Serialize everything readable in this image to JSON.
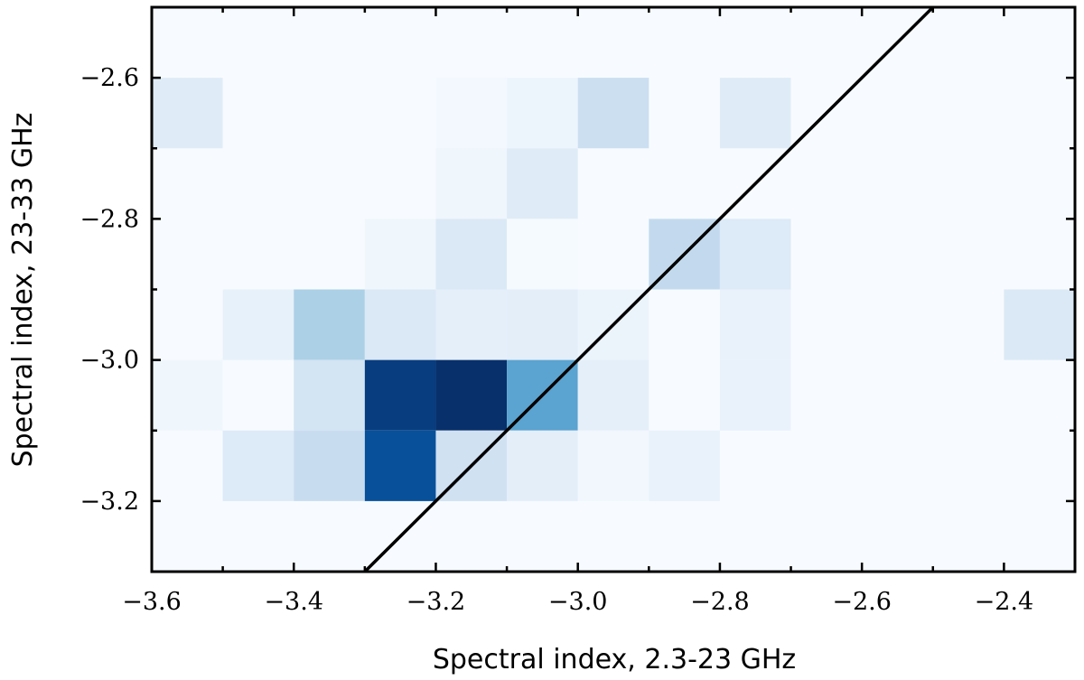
{
  "chart_data": {
    "type": "heatmap",
    "xlabel": "Spectral index, 2.3-23 GHz",
    "ylabel": "Spectral index, 23-33 GHz",
    "xlim": [
      -3.6,
      -2.3
    ],
    "ylim": [
      -3.3,
      -2.5
    ],
    "x_bin_edges": [
      -3.6,
      -3.5,
      -3.4,
      -3.3,
      -3.2,
      -3.1,
      -3.0,
      -2.9,
      -2.8,
      -2.7,
      -2.6,
      -2.5,
      -2.4,
      -2.3
    ],
    "y_bin_edges": [
      -3.3,
      -3.2,
      -3.1,
      -3.0,
      -2.9,
      -2.8,
      -2.7,
      -2.6,
      -2.5
    ],
    "x_ticks": [
      -3.6,
      -3.4,
      -3.2,
      -3.0,
      -2.8,
      -2.6,
      -2.4
    ],
    "x_tick_labels": [
      "−3.6",
      "−3.4",
      "−3.2",
      "−3.0",
      "−2.8",
      "−2.6",
      "−2.4"
    ],
    "y_ticks": [
      -3.2,
      -3.0,
      -2.8,
      -2.6
    ],
    "y_tick_labels": [
      "−3.2",
      "−3.0",
      "−2.8",
      "−2.6"
    ],
    "colormap": "Blues",
    "background_color": "#f7fbff",
    "cells": [
      {
        "x": [
          -3.6,
          -3.5
        ],
        "y": [
          -2.7,
          -2.6
        ],
        "value": 0.12
      },
      {
        "x": [
          -3.2,
          -3.1
        ],
        "y": [
          -2.7,
          -2.6
        ],
        "value": 0.02
      },
      {
        "x": [
          -3.1,
          -3.0
        ],
        "y": [
          -2.7,
          -2.6
        ],
        "value": 0.05
      },
      {
        "x": [
          -3.0,
          -2.9
        ],
        "y": [
          -2.7,
          -2.6
        ],
        "value": 0.22
      },
      {
        "x": [
          -2.8,
          -2.7
        ],
        "y": [
          -2.7,
          -2.6
        ],
        "value": 0.12
      },
      {
        "x": [
          -3.2,
          -3.1
        ],
        "y": [
          -2.8,
          -2.7
        ],
        "value": 0.04
      },
      {
        "x": [
          -3.1,
          -3.0
        ],
        "y": [
          -2.8,
          -2.7
        ],
        "value": 0.12
      },
      {
        "x": [
          -3.3,
          -3.2
        ],
        "y": [
          -2.9,
          -2.8
        ],
        "value": 0.04
      },
      {
        "x": [
          -3.2,
          -3.1
        ],
        "y": [
          -2.9,
          -2.8
        ],
        "value": 0.14
      },
      {
        "x": [
          -3.1,
          -3.0
        ],
        "y": [
          -2.9,
          -2.8
        ],
        "value": 0.01
      },
      {
        "x": [
          -2.9,
          -2.8
        ],
        "y": [
          -2.9,
          -2.8
        ],
        "value": 0.26
      },
      {
        "x": [
          -2.8,
          -2.7
        ],
        "y": [
          -2.9,
          -2.8
        ],
        "value": 0.13
      },
      {
        "x": [
          -3.5,
          -3.4
        ],
        "y": [
          -3.0,
          -2.9
        ],
        "value": 0.08
      },
      {
        "x": [
          -3.4,
          -3.3
        ],
        "y": [
          -3.0,
          -2.9
        ],
        "value": 0.33
      },
      {
        "x": [
          -3.3,
          -3.2
        ],
        "y": [
          -3.0,
          -2.9
        ],
        "value": 0.14
      },
      {
        "x": [
          -3.2,
          -3.1
        ],
        "y": [
          -3.0,
          -2.9
        ],
        "value": 0.09
      },
      {
        "x": [
          -3.1,
          -3.0
        ],
        "y": [
          -3.0,
          -2.9
        ],
        "value": 0.1
      },
      {
        "x": [
          -3.0,
          -2.9
        ],
        "y": [
          -3.0,
          -2.9
        ],
        "value": 0.06
      },
      {
        "x": [
          -2.8,
          -2.7
        ],
        "y": [
          -3.0,
          -2.9
        ],
        "value": 0.07
      },
      {
        "x": [
          -2.4,
          -2.3
        ],
        "y": [
          -3.0,
          -2.9
        ],
        "value": 0.14
      },
      {
        "x": [
          -3.6,
          -3.5
        ],
        "y": [
          -3.1,
          -3.0
        ],
        "value": 0.04
      },
      {
        "x": [
          -3.4,
          -3.3
        ],
        "y": [
          -3.1,
          -3.0
        ],
        "value": 0.18
      },
      {
        "x": [
          -3.3,
          -3.2
        ],
        "y": [
          -3.1,
          -3.0
        ],
        "value": 0.95
      },
      {
        "x": [
          -3.2,
          -3.1
        ],
        "y": [
          -3.1,
          -3.0
        ],
        "value": 1.0
      },
      {
        "x": [
          -3.1,
          -3.0
        ],
        "y": [
          -3.1,
          -3.0
        ],
        "value": 0.55
      },
      {
        "x": [
          -3.0,
          -2.9
        ],
        "y": [
          -3.1,
          -3.0
        ],
        "value": 0.09
      },
      {
        "x": [
          -2.8,
          -2.7
        ],
        "y": [
          -3.1,
          -3.0
        ],
        "value": 0.07
      },
      {
        "x": [
          -3.5,
          -3.4
        ],
        "y": [
          -3.2,
          -3.1
        ],
        "value": 0.13
      },
      {
        "x": [
          -3.4,
          -3.3
        ],
        "y": [
          -3.2,
          -3.1
        ],
        "value": 0.24
      },
      {
        "x": [
          -3.3,
          -3.2
        ],
        "y": [
          -3.2,
          -3.1
        ],
        "value": 0.88
      },
      {
        "x": [
          -3.2,
          -3.1
        ],
        "y": [
          -3.2,
          -3.1
        ],
        "value": 0.2
      },
      {
        "x": [
          -3.1,
          -3.0
        ],
        "y": [
          -3.2,
          -3.1
        ],
        "value": 0.1
      },
      {
        "x": [
          -3.0,
          -2.9
        ],
        "y": [
          -3.2,
          -3.1
        ],
        "value": 0.03
      },
      {
        "x": [
          -2.9,
          -2.8
        ],
        "y": [
          -3.2,
          -3.1
        ],
        "value": 0.07
      }
    ],
    "reference_line": {
      "x": [
        -3.3,
        -2.5
      ],
      "y": [
        -3.3,
        -2.5
      ],
      "color": "#000000"
    },
    "grid": false,
    "legend": "none"
  }
}
